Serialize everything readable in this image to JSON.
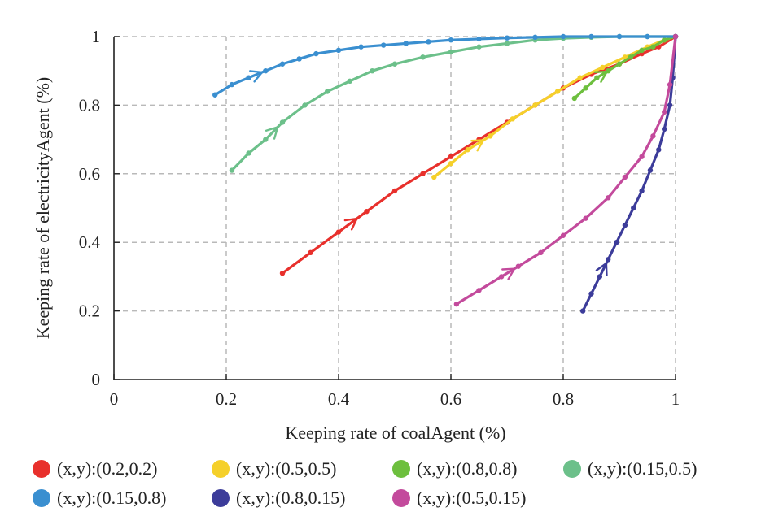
{
  "chart_data": {
    "type": "line",
    "title": "",
    "xlabel": "Keeping rate of coalAgent (%)",
    "ylabel": "Keeping rate of electricityAgent (%)",
    "xlim": [
      0,
      1
    ],
    "ylim": [
      0,
      1
    ],
    "x_ticks": [
      "0",
      "0.2",
      "0.4",
      "0.6",
      "0.8",
      "1"
    ],
    "y_ticks": [
      "0",
      "0.2",
      "0.4",
      "0.6",
      "0.8",
      "1"
    ],
    "grid": "dashed",
    "legend_position": "bottom",
    "series": [
      {
        "name": "(x,y):(0.2,0.2)",
        "color": "#e8302c",
        "x": [
          0.3,
          0.35,
          0.4,
          0.45,
          0.5,
          0.55,
          0.6,
          0.65,
          0.7,
          0.75,
          0.8,
          0.85,
          0.9,
          0.94,
          0.97,
          1.0
        ],
        "y": [
          0.31,
          0.37,
          0.43,
          0.49,
          0.55,
          0.6,
          0.65,
          0.7,
          0.75,
          0.8,
          0.85,
          0.89,
          0.92,
          0.95,
          0.97,
          1.0
        ]
      },
      {
        "name": "(x,y):(0.5,0.5)",
        "color": "#f5d02a",
        "x": [
          0.57,
          0.6,
          0.63,
          0.67,
          0.71,
          0.75,
          0.79,
          0.83,
          0.87,
          0.91,
          0.95,
          0.98,
          1.0
        ],
        "y": [
          0.59,
          0.63,
          0.67,
          0.71,
          0.76,
          0.8,
          0.84,
          0.88,
          0.91,
          0.94,
          0.97,
          0.99,
          1.0
        ]
      },
      {
        "name": "(x,y):(0.8,0.8)",
        "color": "#6dbf3e",
        "x": [
          0.82,
          0.84,
          0.86,
          0.88,
          0.9,
          0.92,
          0.94,
          0.96,
          0.98,
          1.0
        ],
        "y": [
          0.82,
          0.85,
          0.88,
          0.9,
          0.92,
          0.94,
          0.96,
          0.97,
          0.99,
          1.0
        ]
      },
      {
        "name": "(x,y):(0.15,0.5)",
        "color": "#6cc08a",
        "x": [
          0.21,
          0.24,
          0.27,
          0.3,
          0.34,
          0.38,
          0.42,
          0.46,
          0.5,
          0.55,
          0.6,
          0.65,
          0.7,
          0.75,
          0.8,
          0.85,
          0.9,
          0.95,
          1.0
        ],
        "y": [
          0.61,
          0.66,
          0.7,
          0.75,
          0.8,
          0.84,
          0.87,
          0.9,
          0.92,
          0.94,
          0.955,
          0.97,
          0.98,
          0.99,
          0.995,
          0.998,
          1.0,
          1.0,
          1.0
        ]
      },
      {
        "name": "(x,y):(0.15,0.8)",
        "color": "#3a8fd0",
        "x": [
          0.18,
          0.21,
          0.24,
          0.27,
          0.3,
          0.33,
          0.36,
          0.4,
          0.44,
          0.48,
          0.52,
          0.56,
          0.6,
          0.65,
          0.7,
          0.75,
          0.8,
          0.85,
          0.9,
          0.95,
          1.0
        ],
        "y": [
          0.83,
          0.86,
          0.88,
          0.9,
          0.92,
          0.935,
          0.95,
          0.96,
          0.97,
          0.975,
          0.98,
          0.985,
          0.99,
          0.993,
          0.996,
          0.998,
          1.0,
          1.0,
          1.0,
          1.0,
          1.0
        ]
      },
      {
        "name": "(x,y):(0.8,0.15)",
        "color": "#3c3c9a",
        "x": [
          0.835,
          0.85,
          0.865,
          0.88,
          0.895,
          0.91,
          0.925,
          0.94,
          0.955,
          0.97,
          0.98,
          0.99,
          0.995,
          1.0
        ],
        "y": [
          0.2,
          0.25,
          0.3,
          0.35,
          0.4,
          0.45,
          0.5,
          0.55,
          0.61,
          0.67,
          0.73,
          0.8,
          0.88,
          1.0
        ]
      },
      {
        "name": "(x,y):(0.5,0.15)",
        "color": "#c34a9c",
        "x": [
          0.61,
          0.65,
          0.69,
          0.72,
          0.76,
          0.8,
          0.84,
          0.88,
          0.91,
          0.94,
          0.96,
          0.98,
          0.99,
          1.0
        ],
        "y": [
          0.22,
          0.26,
          0.3,
          0.33,
          0.37,
          0.42,
          0.47,
          0.53,
          0.59,
          0.65,
          0.71,
          0.78,
          0.86,
          1.0
        ]
      }
    ]
  }
}
